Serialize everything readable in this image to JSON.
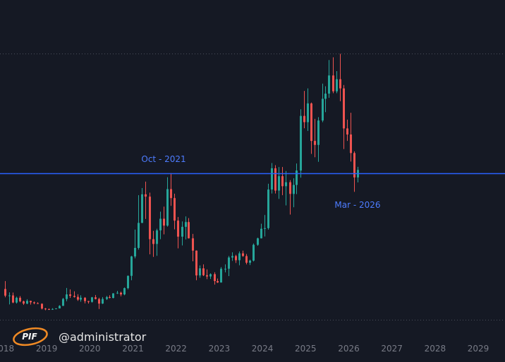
{
  "chart_data": {
    "type": "candlestick",
    "watermark": {
      "logo_text": "PIF",
      "handle": "@administrator"
    },
    "annotations": [
      "Oct - 2021",
      "Mar - 2026"
    ],
    "reference_line": 69.0,
    "up_color": "#26a69a",
    "down_color": "#ef5350",
    "reference_color": "#2962ff",
    "xlim": [
      2017.92,
      2029.62
    ],
    "xticks": [
      2018,
      2019,
      2020,
      2021,
      2022,
      2023,
      2024,
      2025,
      2026,
      2027,
      2028,
      2029
    ],
    "ylim": [
      0,
      127
    ],
    "x": [
      2018.04,
      2018.13,
      2018.21,
      2018.29,
      2018.38,
      2018.46,
      2018.54,
      2018.63,
      2018.71,
      2018.79,
      2018.88,
      2018.96,
      2019.04,
      2019.13,
      2019.21,
      2019.29,
      2019.38,
      2019.46,
      2019.54,
      2019.63,
      2019.71,
      2019.79,
      2019.88,
      2019.96,
      2020.04,
      2020.13,
      2020.21,
      2020.29,
      2020.38,
      2020.46,
      2020.54,
      2020.63,
      2020.71,
      2020.79,
      2020.88,
      2020.96,
      2021.04,
      2021.13,
      2021.21,
      2021.29,
      2021.38,
      2021.46,
      2021.54,
      2021.63,
      2021.71,
      2021.79,
      2021.88,
      2021.96,
      2022.04,
      2022.13,
      2022.21,
      2022.29,
      2022.38,
      2022.46,
      2022.54,
      2022.63,
      2022.71,
      2022.79,
      2022.88,
      2022.96,
      2023.04,
      2023.13,
      2023.21,
      2023.29,
      2023.38,
      2023.46,
      2023.54,
      2023.63,
      2023.71,
      2023.79,
      2023.88,
      2023.96,
      2024.04,
      2024.13,
      2024.21,
      2024.29,
      2024.38,
      2024.46,
      2024.54,
      2024.63,
      2024.71,
      2024.79,
      2024.88,
      2024.96,
      2025.04,
      2025.13,
      2025.21,
      2025.29,
      2025.38,
      2025.46,
      2025.54,
      2025.63,
      2025.71,
      2025.79,
      2025.88,
      2025.96,
      2026.04,
      2026.13,
      2026.21
    ],
    "open": [
      13.4,
      10.2,
      10.3,
      6.9,
      9.2,
      7.5,
      6.4,
      7.7,
      7.0,
      6.6,
      6.3,
      4.0,
      3.7,
      3.5,
      3.8,
      4.1,
      5.3,
      8.6,
      10.8,
      10.1,
      9.6,
      8.3,
      9.2,
      7.6,
      7.2,
      9.4,
      8.6,
      6.4,
      8.6,
      9.5,
      9.1,
      11.3,
      11.6,
      10.8,
      13.8,
      19.7,
      29.0,
      33.1,
      45.1,
      58.8,
      57.7,
      37.3,
      35.0,
      41.5,
      47.1,
      43.8,
      61.3,
      57.0,
      46.2,
      38.5,
      43.2,
      45.5,
      37.7,
      31.8,
      19.9,
      23.3,
      20.0,
      19.4,
      20.5,
      17.2,
      16.5,
      23.1,
      23.1,
      28.5,
      29.2,
      27.2,
      30.5,
      29.2,
      26.0,
      27.0,
      34.6,
      37.7,
      42.3,
      42.6,
      61.1,
      71.3,
      60.6,
      67.5,
      62.7,
      64.6,
      59.0,
      63.3,
      70.2,
      96.4,
      93.4,
      102.4,
      84.4,
      82.5,
      94.2,
      104.6,
      107.1,
      115.8,
      108.2,
      114.0,
      109.6,
      90.4,
      87.5,
      78.6,
      66.9
    ],
    "high": [
      17.2,
      11.8,
      11.7,
      9.7,
      10.0,
      7.8,
      8.5,
      7.8,
      7.4,
      7.0,
      6.5,
      4.3,
      4.1,
      4.2,
      4.1,
      5.6,
      9.1,
      13.9,
      13.2,
      12.3,
      10.9,
      10.4,
      9.5,
      7.7,
      9.6,
      10.5,
      9.2,
      9.5,
      10.1,
      10.4,
      11.4,
      12.5,
      12.1,
      14.1,
      19.9,
      29.3,
      41.9,
      58.4,
      61.8,
      64.9,
      59.6,
      41.3,
      42.3,
      50.5,
      52.9,
      67.0,
      69.0,
      59.1,
      47.9,
      45.8,
      48.2,
      47.4,
      39.8,
      31.9,
      24.7,
      25.2,
      22.8,
      20.9,
      21.4,
      18.4,
      23.9,
      25.2,
      29.2,
      31.0,
      29.8,
      31.4,
      31.8,
      30.2,
      27.5,
      35.2,
      38.0,
      44.7,
      48.9,
      63.9,
      73.8,
      72.8,
      71.9,
      71.9,
      70.0,
      65.6,
      66.5,
      73.6,
      99.6,
      108.4,
      109.6,
      102.8,
      95.0,
      95.8,
      111.9,
      110.6,
      123.2,
      124.5,
      117.9,
      126.2,
      111.2,
      94.6,
      97.9,
      79.4,
      72.0
    ],
    "low": [
      9.4,
      6.0,
      6.6,
      6.4,
      7.0,
      5.8,
      6.1,
      5.9,
      6.1,
      6.2,
      3.6,
      3.2,
      3.4,
      3.4,
      3.7,
      4.1,
      5.3,
      7.5,
      9.1,
      9.3,
      7.7,
      7.3,
      6.5,
      6.4,
      6.9,
      8.4,
      3.8,
      6.2,
      8.1,
      8.9,
      8.9,
      11.0,
      9.9,
      10.4,
      13.2,
      17.6,
      28.1,
      32.3,
      45.0,
      47.0,
      30.0,
      28.8,
      29.3,
      37.3,
      39.6,
      43.3,
      53.3,
      42.0,
      32.9,
      34.3,
      37.2,
      37.6,
      26.7,
      17.6,
      18.8,
      19.6,
      18.1,
      18.2,
      15.5,
      16.3,
      16.5,
      21.4,
      19.6,
      26.9,
      25.9,
      24.8,
      28.9,
      25.2,
      24.9,
      26.6,
      34.1,
      37.6,
      38.6,
      41.9,
      59.2,
      59.2,
      56.6,
      58.4,
      53.5,
      49.1,
      52.6,
      58.9,
      66.8,
      90.5,
      89.2,
      78.2,
      76.6,
      74.4,
      93.4,
      98.2,
      105.1,
      107.3,
      107.3,
      103.5,
      80.5,
      84.4,
      74.5,
      60.0,
      64.5
    ],
    "close": [
      10.2,
      10.3,
      6.9,
      9.2,
      7.5,
      6.4,
      7.7,
      7.0,
      6.6,
      6.3,
      4.0,
      3.7,
      3.5,
      3.8,
      4.1,
      5.3,
      8.6,
      10.8,
      10.1,
      9.6,
      8.3,
      9.2,
      7.6,
      7.2,
      9.4,
      8.6,
      6.4,
      8.6,
      9.5,
      9.1,
      11.3,
      11.6,
      10.8,
      13.8,
      19.7,
      29.0,
      33.1,
      45.1,
      58.8,
      57.7,
      37.3,
      35.0,
      41.5,
      47.1,
      43.8,
      61.3,
      57.0,
      46.2,
      38.5,
      43.2,
      45.5,
      37.7,
      31.8,
      19.9,
      23.3,
      20.0,
      19.4,
      20.5,
      17.2,
      16.5,
      23.1,
      23.1,
      28.5,
      29.2,
      27.2,
      30.5,
      29.2,
      26.0,
      27.0,
      34.6,
      37.7,
      42.3,
      42.6,
      61.1,
      71.3,
      60.6,
      67.5,
      62.7,
      64.6,
      59.0,
      63.3,
      70.2,
      96.4,
      93.4,
      102.4,
      84.4,
      82.5,
      94.2,
      104.6,
      107.1,
      115.8,
      108.2,
      114.0,
      109.6,
      90.4,
      87.5,
      78.6,
      66.9,
      70.5
    ]
  }
}
